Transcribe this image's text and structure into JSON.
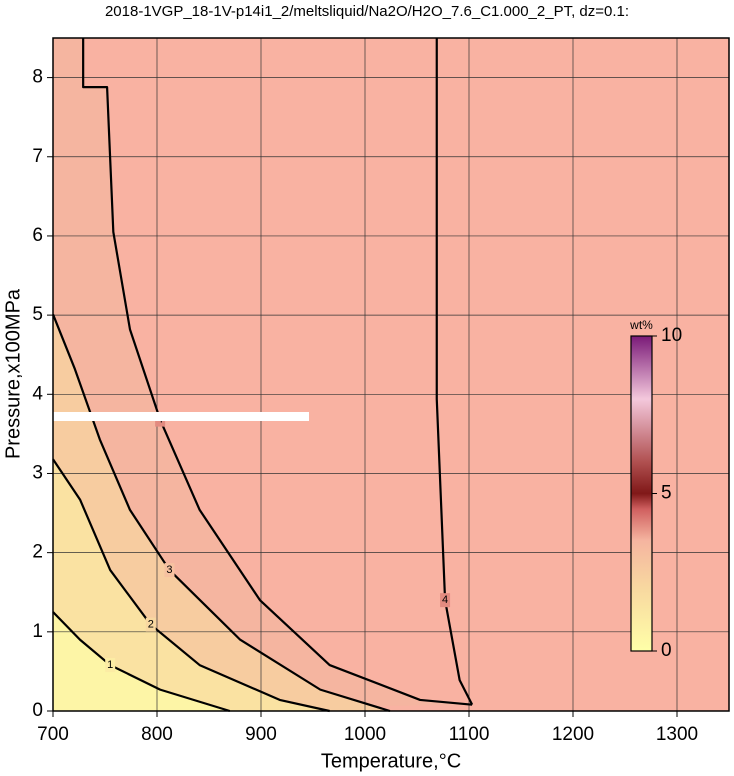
{
  "chart_data": {
    "type": "contour",
    "title": "2018-1VGP_18-1V-p14i1_2/meltsliquid/Na2O/H2O_7.6_C1.000_2_PT, dz=0.1:",
    "x_label": "Temperature,°C",
    "y_label": "Pressure,x100MPa",
    "xlim": [
      700,
      1350
    ],
    "ylim": [
      0,
      8.5
    ],
    "xticks": [
      700,
      800,
      900,
      1000,
      1100,
      1200,
      1300
    ],
    "yticks": [
      0,
      1,
      2,
      3,
      4,
      5,
      6,
      7,
      8
    ],
    "grid": true,
    "contours": [
      {
        "level": 1,
        "x": [
          700,
          726,
          755,
          803,
          870
        ],
        "y": [
          1.25,
          0.9,
          0.58,
          0.27,
          0
        ]
      },
      {
        "level": 2,
        "x": [
          700,
          726,
          755,
          794,
          841,
          918,
          966
        ],
        "y": [
          3.18,
          2.67,
          1.78,
          1.09,
          0.58,
          0.14,
          0
        ]
      },
      {
        "level": 3,
        "x": [
          700,
          721,
          745,
          774,
          812,
          880,
          957,
          1024
        ],
        "y": [
          5.01,
          4.32,
          3.43,
          2.54,
          1.78,
          0.9,
          0.27,
          0
        ]
      },
      {
        "level": 4,
        "x": [
          729,
          729,
          752,
          758,
          774,
          803,
          841,
          899,
          966,
          1053,
          1103
        ],
        "y": [
          8.5,
          7.88,
          7.88,
          6.05,
          4.82,
          3.68,
          2.54,
          1.4,
          0.58,
          0.14,
          0.08
        ]
      },
      {
        "level": 4,
        "x": [
          1103,
          1091,
          1077,
          1069,
          1069
        ],
        "y": [
          0.08,
          0.39,
          1.4,
          3.94,
          8.5
        ]
      }
    ],
    "colorbar": {
      "label": "wt%",
      "lim": [
        0,
        10
      ],
      "ticks": [
        0,
        5,
        10
      ],
      "stops": [
        {
          "value": 0,
          "color": "#ffffa8"
        },
        {
          "value": 2,
          "color": "#f8d8a0"
        },
        {
          "value": 3.5,
          "color": "#f5b5a0"
        },
        {
          "value": 4.5,
          "color": "#d06060"
        },
        {
          "value": 5,
          "color": "#801818"
        },
        {
          "value": 6,
          "color": "#b05050"
        },
        {
          "value": 8,
          "color": "#f4c8dc"
        },
        {
          "value": 10,
          "color": "#7a1a78"
        }
      ]
    }
  }
}
